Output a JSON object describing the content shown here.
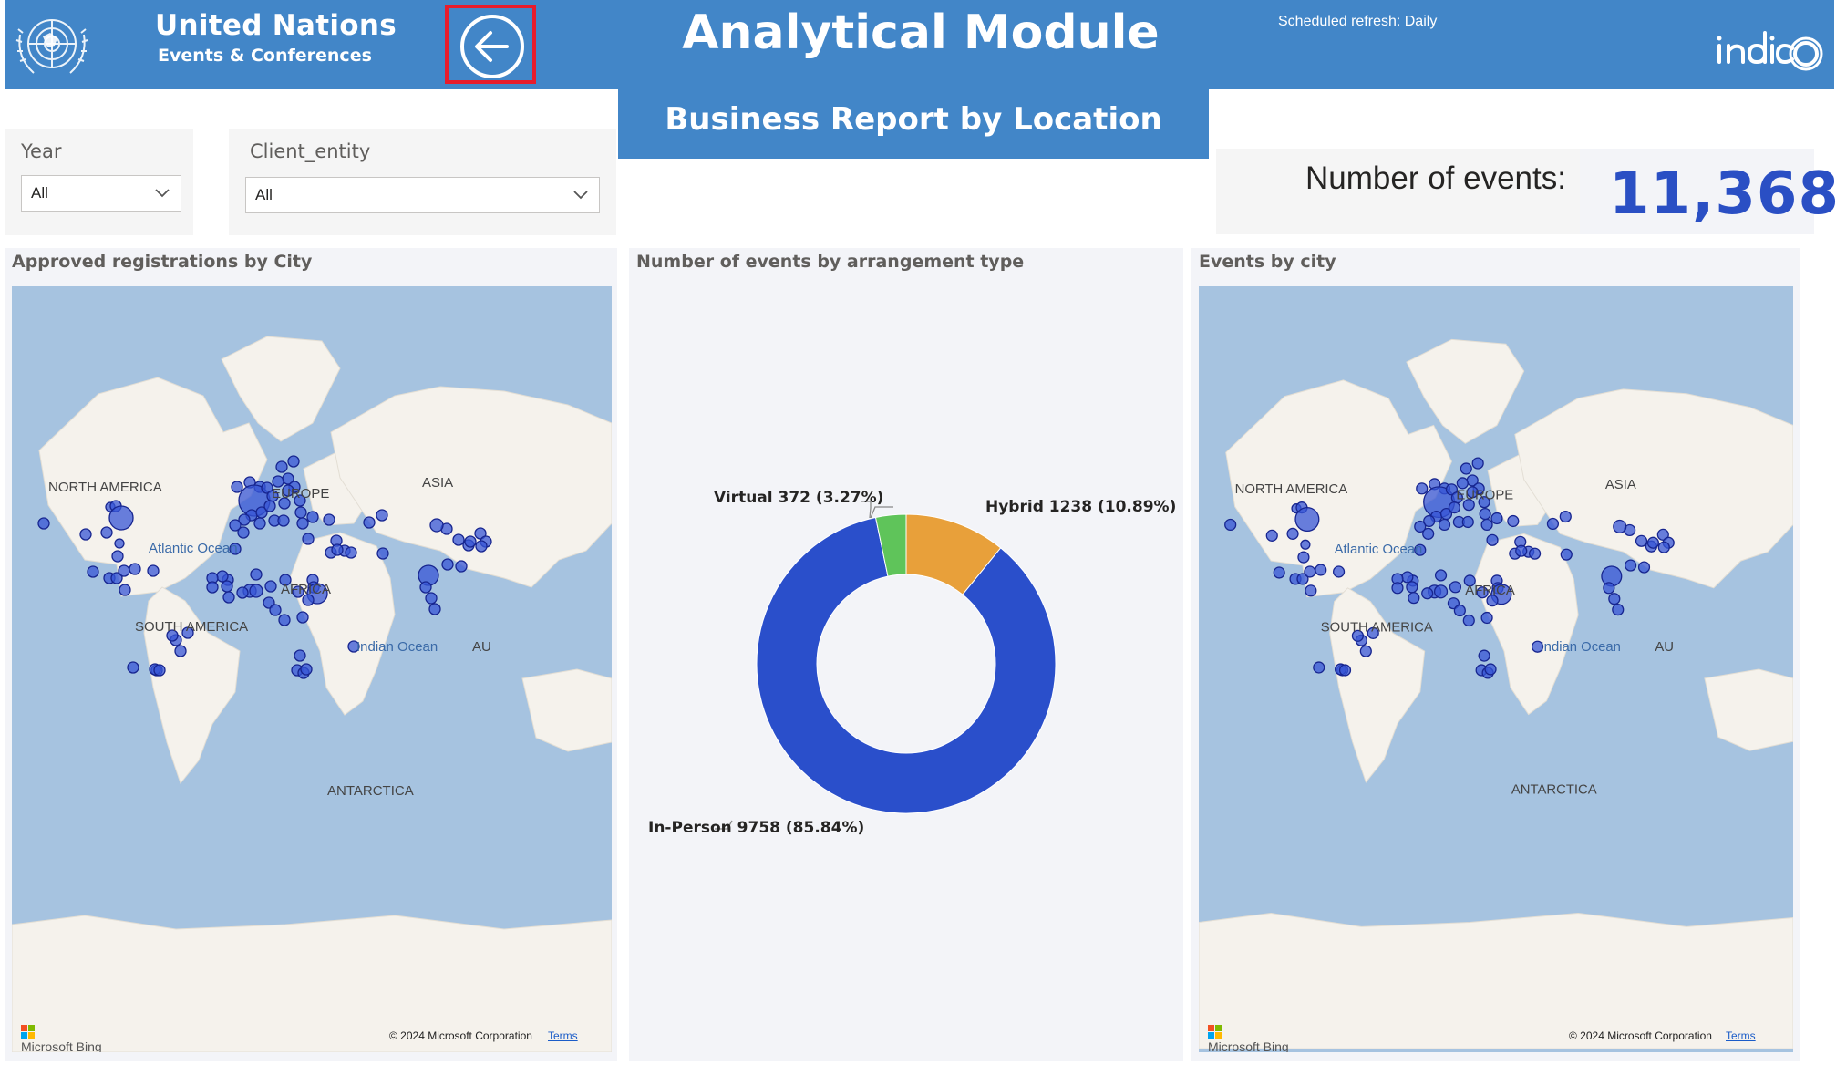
{
  "header": {
    "org_name": "United Nations",
    "org_sub": "Events & Conferences",
    "app_title": "Analytical Module",
    "refresh_text": "Scheduled refresh: Daily",
    "vendor_logo": "indico",
    "back_icon": "arrow-left-circle-icon"
  },
  "report_title": "Business Report by Location",
  "filters": {
    "year": {
      "label": "Year",
      "value": "All"
    },
    "client_entity": {
      "label": "Client_entity",
      "value": "All"
    }
  },
  "kpi": {
    "label": "Number of events:",
    "value": "11,368"
  },
  "map_left": {
    "title": "Approved registrations by City",
    "labels": {
      "north_america": "NORTH AMERICA",
      "europe": "EUROPE",
      "asia": "ASIA",
      "africa": "AFRICA",
      "south_america": "SOUTH AMERICA",
      "atlantic": "Atlantic Ocean",
      "indian": "Indian Ocean",
      "antarctica": "ANTARCTICA",
      "australia": "AU"
    },
    "bing": "Microsoft Bing",
    "copyright": "© 2024 Microsoft Corporation",
    "terms": "Terms"
  },
  "map_right": {
    "title": "Events by city",
    "labels": {
      "north_america": "NORTH AMERICA",
      "europe": "EUROPE",
      "asia": "ASIA",
      "africa": "AFRICA",
      "south_america": "SOUTH AMERICA",
      "atlantic": "Atlantic Ocean",
      "indian": "Indian Ocean",
      "antarctica": "ANTARCTICA",
      "australia": "AU"
    },
    "bing": "Microsoft Bing",
    "copyright": "© 2024 Microsoft Corporation",
    "terms": "Terms"
  },
  "donut": {
    "title": "Number of events by arrangement type",
    "colors": {
      "in_person": "#2a4fcb",
      "hybrid": "#e8a03a",
      "virtual": "#5fc45a"
    },
    "chart_data": {
      "type": "pie",
      "categories": [
        "In-Person",
        "Hybrid",
        "Virtual"
      ],
      "values": [
        9758,
        1238,
        372
      ],
      "percents": [
        85.84,
        10.89,
        3.27
      ],
      "data_labels": [
        "In-Person 9758 (85.84%)",
        "Hybrid 1238 (10.89%)",
        "Virtual 372 (3.27%)"
      ]
    }
  }
}
